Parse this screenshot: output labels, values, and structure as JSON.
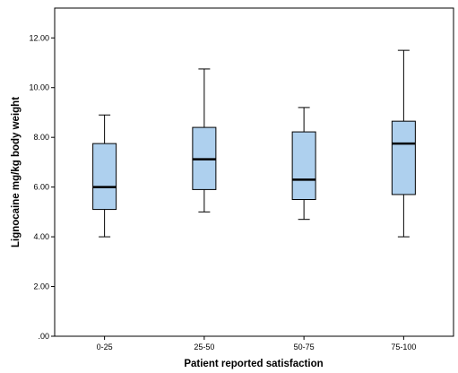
{
  "chart_data": {
    "type": "boxplot",
    "title": "",
    "xlabel": "Patient reported satisfaction",
    "ylabel": "Lignocaine mg/kg body weight",
    "ylim": [
      0,
      13.2
    ],
    "yticks": [
      0,
      2,
      4,
      6,
      8,
      10,
      12
    ],
    "ytick_labels": [
      ".00",
      "2.00",
      "4.00",
      "6.00",
      "8.00",
      "10.00",
      "12.00"
    ],
    "grid": false,
    "categories": [
      "0-25",
      "25-50",
      "50-75",
      "75-100"
    ],
    "boxes": [
      {
        "min": 4.0,
        "q1": 5.1,
        "median": 6.0,
        "q3": 7.75,
        "max": 8.9
      },
      {
        "min": 5.0,
        "q1": 5.9,
        "median": 7.12,
        "q3": 8.4,
        "max": 10.75
      },
      {
        "min": 4.7,
        "q1": 5.5,
        "median": 6.3,
        "q3": 8.22,
        "max": 9.2
      },
      {
        "min": 4.0,
        "q1": 5.7,
        "median": 7.75,
        "q3": 8.65,
        "max": 11.5
      }
    ],
    "colors": {
      "box_fill": "#aed0ee",
      "stroke": "#000000",
      "background": "#ffffff"
    }
  }
}
